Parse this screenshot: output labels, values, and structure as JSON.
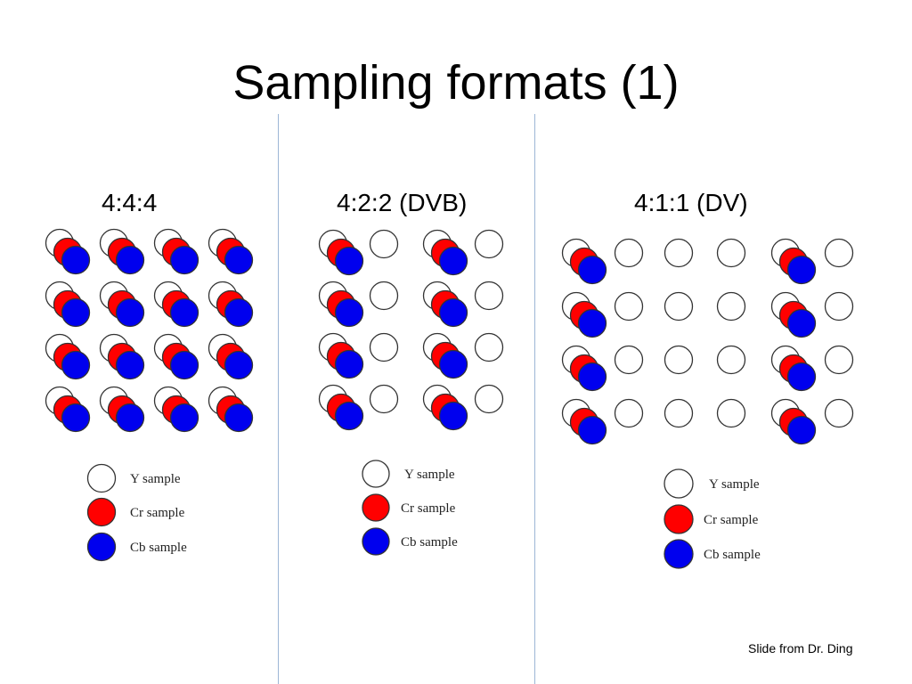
{
  "title": "Sampling formats (1)",
  "panels": [
    {
      "label": "4:4:4",
      "pattern": "every Y sample carries Cr and Cb"
    },
    {
      "label": "4:2:2 (DVB)",
      "pattern": "every 2nd Y sample carries Cr and Cb"
    },
    {
      "label": "4:1:1 (DV)",
      "pattern": "every 4th Y sample carries Cr and Cb"
    }
  ],
  "legend": {
    "y_label": "Y sample",
    "cr_label": "Cr sample",
    "cb_label": "Cb sample"
  },
  "colors": {
    "y": "#ffffff",
    "cr": "#ff0000",
    "cb": "#0000ee",
    "outline": "#333333",
    "divider": "#9db6d6"
  },
  "credit": "Slide from Dr. Ding"
}
